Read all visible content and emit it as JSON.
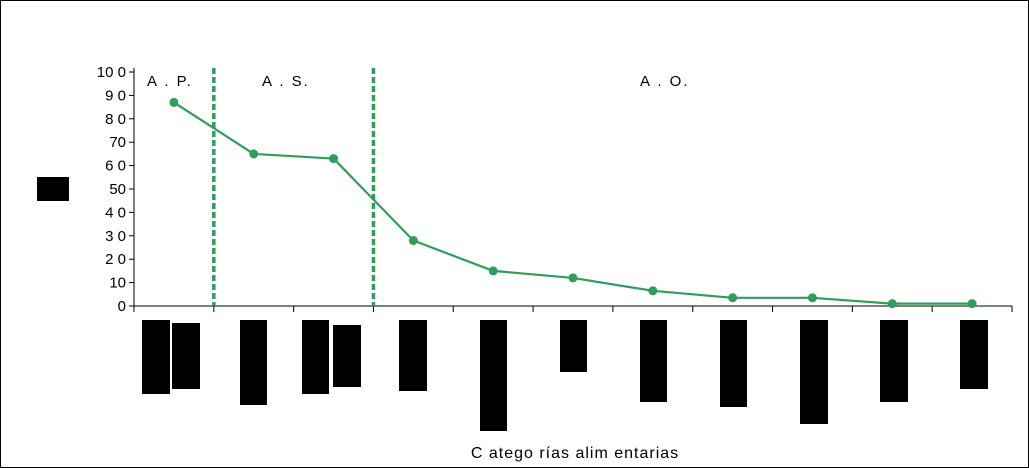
{
  "chart_data": {
    "type": "line",
    "categories": [
      "",
      "",
      "",
      "",
      "",
      "",
      "",
      "",
      "",
      "",
      ""
    ],
    "values": [
      87,
      65,
      63,
      28,
      15,
      12,
      6.5,
      3.5,
      3.5,
      1,
      1
    ],
    "xlabel": "C atego rías alim entarias",
    "ylabel": "",
    "ylim": [
      0,
      100
    ],
    "yticks": [
      "0",
      "10",
      "2 0",
      "3 0",
      "4 0",
      "50",
      "6 0",
      "70",
      "8 0",
      "9 0",
      "10 0"
    ],
    "grid": false,
    "legend": "none",
    "series_color": "#2e9e5b",
    "divider_color": "#2e9e5b",
    "dividers_after_category": [
      1,
      3
    ],
    "regions": [
      {
        "label": "A . P.",
        "from": 1,
        "to": 1
      },
      {
        "label": "A . S.",
        "from": 2,
        "to": 3
      },
      {
        "label": "A . O.",
        "from": 4,
        "to": 11
      }
    ]
  }
}
